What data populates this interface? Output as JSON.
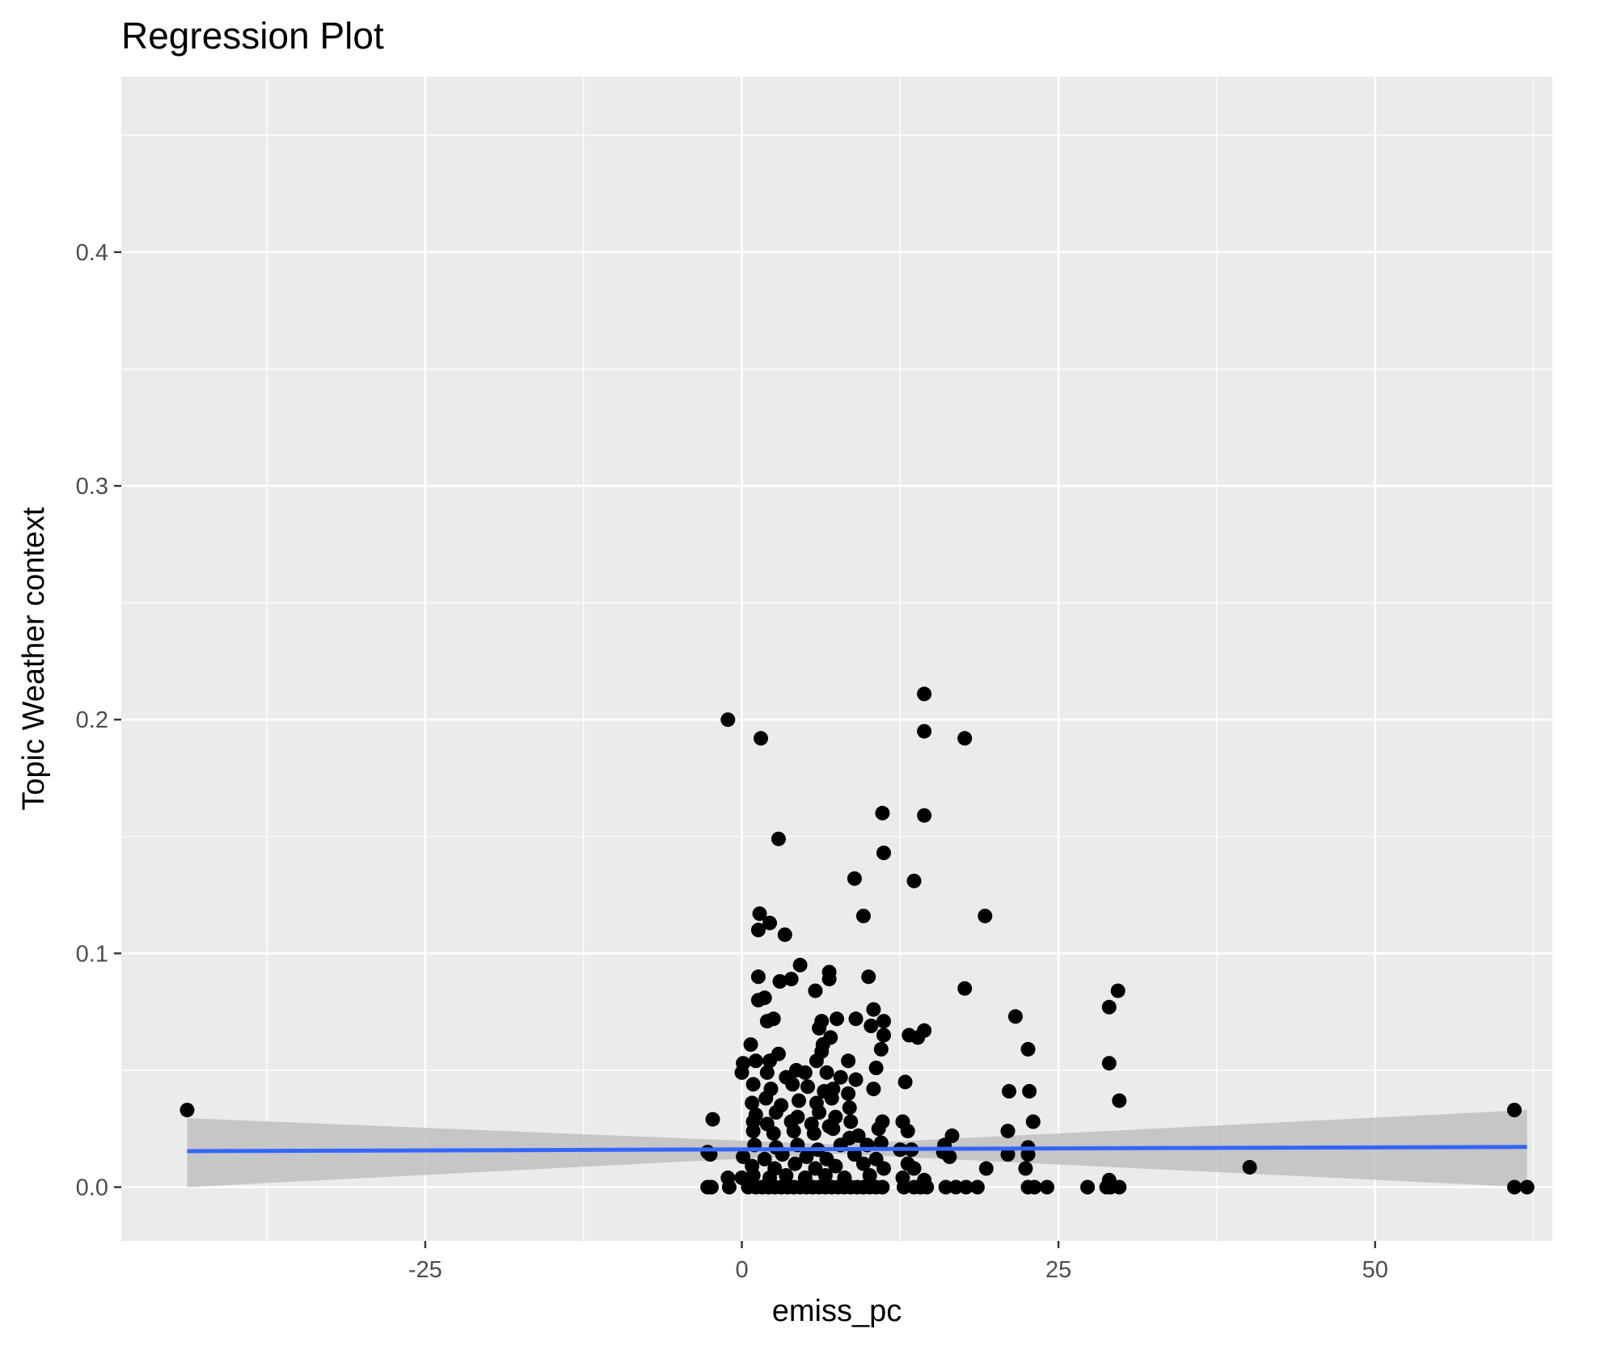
{
  "chart_data": {
    "type": "scatter",
    "title": "Regression Plot",
    "xlabel": "emiss_pc",
    "ylabel": "Topic Weather context",
    "xlim": [
      -49,
      64
    ],
    "ylim": [
      -0.023,
      0.475
    ],
    "x_ticks": [
      -25,
      0,
      25,
      50
    ],
    "x_tick_labels": [
      "-25",
      "0",
      "25",
      "50"
    ],
    "y_ticks": [
      0.0,
      0.1,
      0.2,
      0.3,
      0.4
    ],
    "y_tick_labels": [
      "0.0",
      "0.1",
      "0.2",
      "0.3",
      "0.4"
    ],
    "grid": true,
    "legend": "none",
    "colors": {
      "panel_background": "#ebebeb",
      "grid": "#ffffff",
      "points": "#000000",
      "regression_line": "#3366ff",
      "confidence_band": "#bfbfbf"
    },
    "regression": {
      "x": [
        -43.8,
        62.0
      ],
      "y": [
        0.0154,
        0.0172
      ],
      "ci_lower": [
        0.0,
        0.0
      ],
      "ci_upper": [
        0.0295,
        0.033
      ]
    },
    "points": [
      [
        -43.8,
        0.033
      ],
      [
        -1.1,
        0.2
      ],
      [
        1.5,
        0.192
      ],
      [
        14.4,
        0.211
      ],
      [
        14.4,
        0.195
      ],
      [
        17.6,
        0.192
      ],
      [
        11.1,
        0.16
      ],
      [
        14.4,
        0.159
      ],
      [
        11.2,
        0.143
      ],
      [
        2.9,
        0.149
      ],
      [
        8.9,
        0.132
      ],
      [
        13.6,
        0.131
      ],
      [
        9.6,
        0.116
      ],
      [
        19.2,
        0.116
      ],
      [
        1.4,
        0.117
      ],
      [
        1.3,
        0.11
      ],
      [
        2.2,
        0.113
      ],
      [
        3.4,
        0.108
      ],
      [
        4.6,
        0.095
      ],
      [
        1.3,
        0.09
      ],
      [
        3.0,
        0.088
      ],
      [
        3.9,
        0.089
      ],
      [
        5.8,
        0.084
      ],
      [
        6.9,
        0.092
      ],
      [
        6.9,
        0.089
      ],
      [
        10.0,
        0.09
      ],
      [
        17.6,
        0.085
      ],
      [
        1.3,
        0.08
      ],
      [
        1.8,
        0.081
      ],
      [
        2.0,
        0.071
      ],
      [
        2.5,
        0.072
      ],
      [
        6.1,
        0.068
      ],
      [
        6.3,
        0.071
      ],
      [
        7.5,
        0.072
      ],
      [
        9.0,
        0.072
      ],
      [
        10.4,
        0.076
      ],
      [
        10.2,
        0.069
      ],
      [
        11.2,
        0.071
      ],
      [
        11.2,
        0.065
      ],
      [
        13.9,
        0.064
      ],
      [
        14.4,
        0.067
      ],
      [
        13.2,
        0.065
      ],
      [
        7.0,
        0.064
      ],
      [
        6.4,
        0.061
      ],
      [
        6.3,
        0.058
      ],
      [
        0.7,
        0.061
      ],
      [
        0.1,
        0.053
      ],
      [
        1.1,
        0.054
      ],
      [
        2.2,
        0.054
      ],
      [
        2.9,
        0.057
      ],
      [
        5.9,
        0.054
      ],
      [
        8.4,
        0.054
      ],
      [
        11.0,
        0.059
      ],
      [
        10.6,
        0.051
      ],
      [
        21.6,
        0.073
      ],
      [
        22.6,
        0.059
      ],
      [
        29.0,
        0.077
      ],
      [
        29.7,
        0.084
      ],
      [
        29.0,
        0.053
      ],
      [
        0.0,
        0.049
      ],
      [
        2.0,
        0.049
      ],
      [
        3.5,
        0.047
      ],
      [
        4.3,
        0.05
      ],
      [
        5.0,
        0.049
      ],
      [
        6.7,
        0.049
      ],
      [
        7.8,
        0.047
      ],
      [
        9.0,
        0.046
      ],
      [
        12.9,
        0.045
      ],
      [
        0.9,
        0.044
      ],
      [
        2.3,
        0.042
      ],
      [
        4.0,
        0.044
      ],
      [
        5.2,
        0.043
      ],
      [
        6.5,
        0.041
      ],
      [
        7.2,
        0.042
      ],
      [
        8.4,
        0.04
      ],
      [
        10.4,
        0.042
      ],
      [
        21.1,
        0.041
      ],
      [
        22.7,
        0.041
      ],
      [
        29.8,
        0.037
      ],
      [
        0.8,
        0.036
      ],
      [
        1.9,
        0.038
      ],
      [
        3.1,
        0.035
      ],
      [
        4.5,
        0.037
      ],
      [
        5.9,
        0.036
      ],
      [
        7.1,
        0.038
      ],
      [
        8.5,
        0.034
      ],
      [
        1.1,
        0.031
      ],
      [
        2.7,
        0.032
      ],
      [
        4.4,
        0.03
      ],
      [
        6.1,
        0.032
      ],
      [
        7.4,
        0.03
      ],
      [
        -2.3,
        0.029
      ],
      [
        0.9,
        0.028
      ],
      [
        2.0,
        0.027
      ],
      [
        3.9,
        0.028
      ],
      [
        5.5,
        0.027
      ],
      [
        6.9,
        0.026
      ],
      [
        8.6,
        0.028
      ],
      [
        11.1,
        0.028
      ],
      [
        12.7,
        0.028
      ],
      [
        23.0,
        0.028
      ],
      [
        0.9,
        0.024
      ],
      [
        2.5,
        0.023
      ],
      [
        4.1,
        0.024
      ],
      [
        5.7,
        0.023
      ],
      [
        7.2,
        0.025
      ],
      [
        9.2,
        0.022
      ],
      [
        10.8,
        0.025
      ],
      [
        13.1,
        0.024
      ],
      [
        21.0,
        0.024
      ],
      [
        8.5,
        0.021
      ],
      [
        16.6,
        0.022
      ],
      [
        22.6,
        0.017
      ],
      [
        16.0,
        0.018
      ],
      [
        1.0,
        0.018
      ],
      [
        2.7,
        0.017
      ],
      [
        4.4,
        0.018
      ],
      [
        6.0,
        0.016
      ],
      [
        7.8,
        0.018
      ],
      [
        9.9,
        0.018
      ],
      [
        11.0,
        0.019
      ],
      [
        12.5,
        0.016
      ],
      [
        -2.7,
        0.015
      ],
      [
        -2.5,
        0.014
      ],
      [
        0.1,
        0.013
      ],
      [
        1.8,
        0.012
      ],
      [
        3.2,
        0.014
      ],
      [
        5.1,
        0.013
      ],
      [
        6.7,
        0.012
      ],
      [
        8.9,
        0.014
      ],
      [
        10.6,
        0.012
      ],
      [
        13.4,
        0.016
      ],
      [
        15.9,
        0.015
      ],
      [
        16.4,
        0.013
      ],
      [
        21.0,
        0.014
      ],
      [
        22.6,
        0.014
      ],
      [
        0.8,
        0.009
      ],
      [
        2.6,
        0.008
      ],
      [
        4.2,
        0.01
      ],
      [
        5.8,
        0.008
      ],
      [
        7.4,
        0.009
      ],
      [
        9.6,
        0.01
      ],
      [
        11.2,
        0.008
      ],
      [
        13.1,
        0.01
      ],
      [
        13.6,
        0.008
      ],
      [
        19.3,
        0.008
      ],
      [
        22.4,
        0.008
      ],
      [
        40.1,
        0.0085
      ],
      [
        0.9,
        0.005
      ],
      [
        2.2,
        0.004
      ],
      [
        3.5,
        0.005
      ],
      [
        5.0,
        0.004
      ],
      [
        6.6,
        0.005
      ],
      [
        8.1,
        0.004
      ],
      [
        10.1,
        0.005
      ],
      [
        12.7,
        0.004
      ],
      [
        14.4,
        0.003
      ],
      [
        -1.1,
        0.004
      ],
      [
        0.0,
        0.004
      ],
      [
        29.0,
        0.003
      ],
      [
        -2.7,
        0.0
      ],
      [
        -2.4,
        0.0
      ],
      [
        -1.0,
        0.0
      ],
      [
        0.5,
        0.0
      ],
      [
        1.1,
        0.0
      ],
      [
        1.6,
        0.0
      ],
      [
        2.1,
        0.0
      ],
      [
        2.6,
        0.0
      ],
      [
        3.1,
        0.0
      ],
      [
        3.6,
        0.0
      ],
      [
        4.1,
        0.0
      ],
      [
        4.6,
        0.0
      ],
      [
        5.1,
        0.0
      ],
      [
        5.6,
        0.0
      ],
      [
        6.1,
        0.0
      ],
      [
        6.6,
        0.0
      ],
      [
        7.1,
        0.0
      ],
      [
        7.6,
        0.0
      ],
      [
        8.1,
        0.0
      ],
      [
        8.6,
        0.0
      ],
      [
        9.1,
        0.0
      ],
      [
        9.6,
        0.0
      ],
      [
        10.1,
        0.0
      ],
      [
        10.6,
        0.0
      ],
      [
        11.1,
        0.0
      ],
      [
        12.8,
        0.0
      ],
      [
        13.6,
        0.0
      ],
      [
        14.1,
        0.0
      ],
      [
        14.6,
        0.0
      ],
      [
        16.1,
        0.0
      ],
      [
        16.9,
        0.0
      ],
      [
        17.7,
        0.0
      ],
      [
        18.6,
        0.0
      ],
      [
        22.6,
        0.0
      ],
      [
        23.1,
        0.0
      ],
      [
        24.1,
        0.0
      ],
      [
        27.3,
        0.0
      ],
      [
        28.8,
        0.0
      ],
      [
        29.1,
        0.0
      ],
      [
        29.8,
        0.0
      ],
      [
        61.0,
        0.033
      ],
      [
        61.0,
        0.0
      ],
      [
        62.0,
        0.0
      ]
    ]
  }
}
